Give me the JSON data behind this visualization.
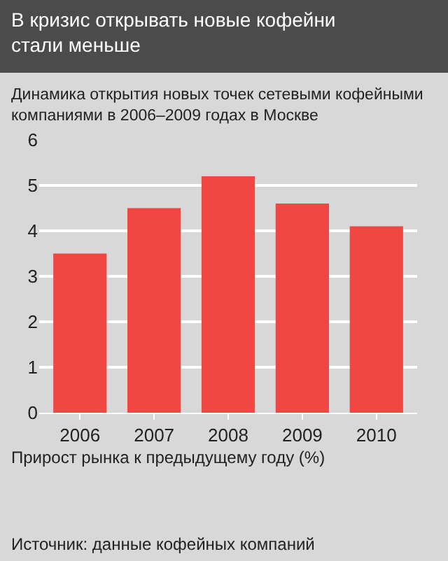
{
  "chart_data": {
    "type": "bar",
    "title": "В кризис открывать новые кофейни стали меньше",
    "subtitle": "Динамика открытия новых точек сетевыми кофейными компаниями в 2006–2009 годах в Москве",
    "xlabel": "Прирост рынка к предыдущему году (%)",
    "categories": [
      "2006",
      "2007",
      "2008",
      "2009",
      "2010"
    ],
    "values": [
      3.5,
      4.5,
      5.2,
      4.6,
      4.1
    ],
    "color": "#f04742",
    "ylim": [
      0,
      6
    ],
    "yticks": [
      0,
      1,
      2,
      3,
      4,
      5,
      6
    ],
    "grid": "y",
    "annotations": [
      "Источник: данные кофейных компаний"
    ]
  }
}
